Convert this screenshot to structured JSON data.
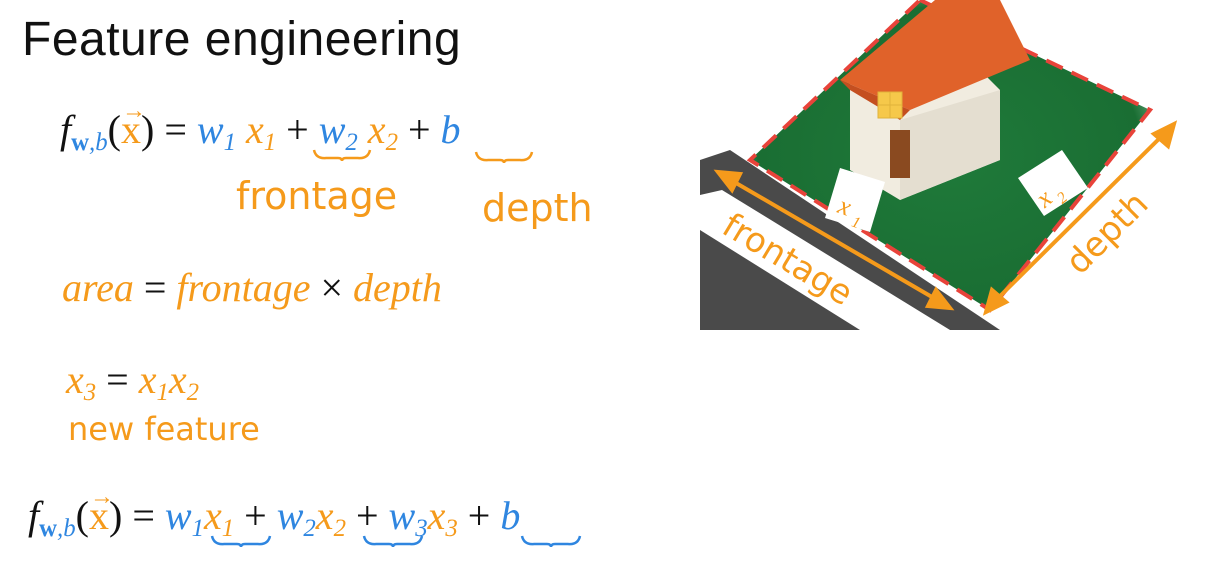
{
  "title": "Feature engineering",
  "eq1": {
    "f": "f",
    "sub_w": "w",
    "sub_b": ",b",
    "lparen": "(",
    "x": "x",
    "rparen": ")",
    "eq": " = ",
    "w1": "w",
    "w1_sub": "1",
    "x1": "x",
    "x1_sub": "1",
    "plus1": " + ",
    "w2": "w",
    "w2_sub": "2",
    "x2": "x",
    "x2_sub": "2",
    "plus2": " + ",
    "b": "b"
  },
  "handwritten": {
    "frontage": "frontage",
    "depth": "depth",
    "new_feature": "new feature"
  },
  "eq_area": {
    "area": "area",
    "eq": " = ",
    "frontage": "frontage",
    "times": " × ",
    "depth": "depth"
  },
  "eq_x3": {
    "x3": "x",
    "x3_sub": "3",
    "eq": " = ",
    "x1": "x",
    "x1_sub": "1",
    "x2": "x",
    "x2_sub": "2"
  },
  "eq2": {
    "f": "f",
    "sub_w": "w",
    "sub_b": ",b",
    "lparen": "(",
    "x": "x",
    "rparen": ")",
    "eq": " = ",
    "w1": "w",
    "w1_sub": "1",
    "x1": "x",
    "x1_sub": "1",
    "plus1": " + ",
    "w2": "w",
    "w2_sub": "2",
    "x2": "x",
    "x2_sub": "2",
    "plus2": " + ",
    "w3": "w",
    "w3_sub": "3",
    "x3": "x",
    "x3_sub": "3",
    "plus3": " + ",
    "b": "b"
  },
  "illustration": {
    "frontage_label": "frontage",
    "depth_label": "depth",
    "x1_label": "x",
    "x1_sub": "1",
    "x2_label": "x",
    "x2_sub": "2"
  },
  "colors": {
    "blue": "#2f86e0",
    "orange": "#f59a1b",
    "lawn": "#1f7a3a",
    "roof": "#e0622a",
    "road": "#4a4a4a",
    "dash": "#e8433a"
  }
}
